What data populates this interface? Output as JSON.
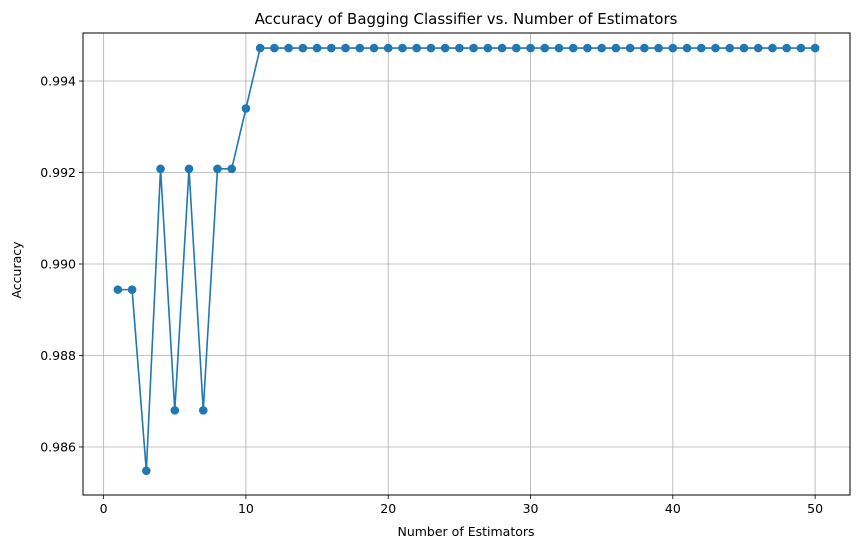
{
  "chart_data": {
    "type": "line",
    "title": "Accuracy of Bagging Classifier vs. Number of Estimators",
    "xlabel": "Number of Estimators",
    "ylabel": "Accuracy",
    "xlim": [
      -1.45,
      52.45
    ],
    "ylim": [
      0.98495,
      0.99505
    ],
    "x_ticks": [
      0,
      10,
      20,
      30,
      40,
      50
    ],
    "x_tick_labels": [
      "0",
      "10",
      "20",
      "30",
      "40",
      "50"
    ],
    "y_ticks": [
      0.986,
      0.988,
      0.99,
      0.992,
      0.994
    ],
    "y_tick_labels": [
      "0.986",
      "0.988",
      "0.990",
      "0.992",
      "0.994"
    ],
    "grid": true,
    "legend": "none",
    "series": [
      {
        "color": "#1f77b4",
        "marker": "circle",
        "x": [
          1,
          2,
          3,
          4,
          5,
          6,
          7,
          8,
          9,
          10,
          11,
          12,
          13,
          14,
          15,
          16,
          17,
          18,
          19,
          20,
          21,
          22,
          23,
          24,
          25,
          26,
          27,
          28,
          29,
          30,
          31,
          32,
          33,
          34,
          35,
          36,
          37,
          38,
          39,
          40,
          41,
          42,
          43,
          44,
          45,
          46,
          47,
          48,
          49,
          50
        ],
        "values": [
          0.98944,
          0.98944,
          0.98548,
          0.99208,
          0.9868,
          0.99208,
          0.9868,
          0.99208,
          0.99208,
          0.9934,
          0.99472,
          0.99472,
          0.99472,
          0.99472,
          0.99472,
          0.99472,
          0.99472,
          0.99472,
          0.99472,
          0.99472,
          0.99472,
          0.99472,
          0.99472,
          0.99472,
          0.99472,
          0.99472,
          0.99472,
          0.99472,
          0.99472,
          0.99472,
          0.99472,
          0.99472,
          0.99472,
          0.99472,
          0.99472,
          0.99472,
          0.99472,
          0.99472,
          0.99472,
          0.99472,
          0.99472,
          0.99472,
          0.99472,
          0.99472,
          0.99472,
          0.99472,
          0.99472,
          0.99472,
          0.99472,
          0.99472
        ]
      }
    ]
  }
}
